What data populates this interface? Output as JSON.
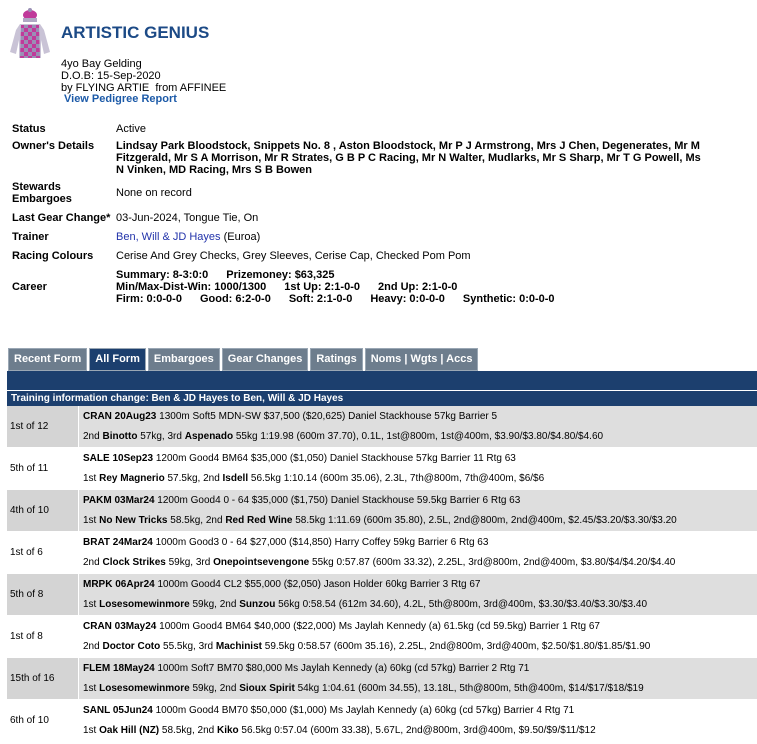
{
  "header": {
    "name": "ARTISTIC GENIUS",
    "description": "4yo Bay Gelding",
    "dob": "D.O.B: 15-Sep-2020",
    "breeding": "by FLYING ARTIE  from AFFINEE",
    "pedigree_link": "View Pedigree Report"
  },
  "details": {
    "status": {
      "label": "Status",
      "value": "Active"
    },
    "owners": {
      "label": "Owner's Details",
      "value": "Lindsay Park Bloodstock, Snippets No. 8 , Aston Bloodstock, Mr P J Armstrong, Mrs J Chen, Degenerates, Mr M Fitzgerald, Mr S A Morrison, Mr R Strates, G B P C Racing, Mr N Walter, Mudlarks, Mr S Sharp, Mr T G Powell, Ms N Vinken, MD Racing, Mrs S B Bowen"
    },
    "embargoes": {
      "label": "Stewards Embargoes",
      "value": "None on record"
    },
    "gear": {
      "label": "Last Gear Change*",
      "value": "03-Jun-2024, Tongue Tie, On"
    },
    "trainer": {
      "label": "Trainer",
      "value": "Ben, Will & JD Hayes",
      "location": "(Euroa)"
    },
    "colours": {
      "label": "Racing Colours",
      "value": "Cerise And Grey Checks, Grey Sleeves, Cerise Cap, Checked Pom Pom"
    },
    "career": {
      "label": "Career",
      "lines": [
        [
          [
            "Summary:",
            "8-3:0:0"
          ],
          [
            "Prizemoney:",
            "$63,325"
          ]
        ],
        [
          [
            "Min/Max-Dist-Win:",
            "1000/1300"
          ],
          [
            "1st Up:",
            "2:1-0-0"
          ],
          [
            "2nd Up:",
            "2:1-0-0"
          ]
        ],
        [
          [
            "Firm:",
            "0:0-0-0"
          ],
          [
            "Good:",
            "6:2-0-0"
          ],
          [
            "Soft:",
            "2:1-0-0"
          ],
          [
            "Heavy:",
            "0:0-0-0"
          ],
          [
            "Synthetic:",
            "0:0-0-0"
          ]
        ]
      ]
    }
  },
  "tabs": {
    "items": [
      "Recent Form",
      "All Form",
      "Embargoes",
      "Gear Changes",
      "Ratings",
      "Noms | Wgts | Accs"
    ],
    "active": 1
  },
  "form": {
    "notice": "Training information change: Ben & JD Hayes to Ben, Will & JD Hayes",
    "rows": [
      {
        "place": "1st of 12",
        "meeting": "CRAN 20Aug23",
        "details": "1300m Soft5 MDN-SW $37,500 ($20,625) Daniel Stackhouse 57kg Barrier 5",
        "result": [
          "2nd",
          "Binotto",
          "57kg, 3rd",
          "Aspenado",
          "55kg 1:19.98 (600m 37.70), 0.1L, 1st@800m, 1st@400m, $3.90/$3.80/$4.80/$4.60"
        ]
      },
      {
        "place": "5th of 11",
        "meeting": "SALE 10Sep23",
        "details": "1200m Good4 BM64 $35,000 ($1,050) Daniel Stackhouse 57kg Barrier 11 Rtg 63",
        "result": [
          "1st",
          "Rey Magnerio",
          "57.5kg, 2nd",
          "Isdell",
          "56.5kg 1:10.14 (600m 35.06), 2.3L, 7th@800m, 7th@400m, $6/$6"
        ]
      },
      {
        "place": "4th of 10",
        "meeting": "PAKM 03Mar24",
        "details": "1200m Good4 0 - 64 $35,000 ($1,750) Daniel Stackhouse 59.5kg Barrier 6 Rtg 63",
        "result": [
          "1st",
          "No New Tricks",
          "58.5kg, 2nd",
          "Red Red Wine",
          "58.5kg 1:11.69 (600m 35.80), 2.5L, 2nd@800m, 2nd@400m, $2.45/$3.20/$3.30/$3.20"
        ]
      },
      {
        "place": "1st of 6",
        "meeting": "BRAT 24Mar24",
        "details": "1000m Good3 0 - 64 $27,000 ($14,850) Harry Coffey 59kg Barrier 6 Rtg 63",
        "result": [
          "2nd",
          "Clock Strikes",
          "59kg, 3rd",
          "Onepointsevengone",
          "55kg 0:57.87 (600m 33.32), 2.25L, 3rd@800m, 2nd@400m, $3.80/$4/$4.20/$4.40"
        ]
      },
      {
        "place": "5th of 8",
        "meeting": "MRPK 06Apr24",
        "details": "1000m Good4 CL2 $55,000 ($2,050) Jason Holder 60kg Barrier 3 Rtg 67",
        "result": [
          "1st",
          "Losesomewinmore",
          "59kg, 2nd",
          "Sunzou",
          "56kg 0:58.54 (612m 34.60), 4.2L, 5th@800m, 3rd@400m, $3.30/$3.40/$3.30/$3.40"
        ]
      },
      {
        "place": "1st of 8",
        "meeting": "CRAN 03May24",
        "details": "1000m Good4 BM64 $40,000 ($22,000) Ms Jaylah Kennedy (a) 61.5kg (cd 59.5kg) Barrier 1 Rtg 67",
        "result": [
          "2nd",
          "Doctor Coto",
          "55.5kg, 3rd",
          "Machinist",
          "59.5kg 0:58.57 (600m 35.16), 2.25L, 2nd@800m, 3rd@400m, $2.50/$1.80/$1.85/$1.90"
        ]
      },
      {
        "place": "15th of 16",
        "meeting": "FLEM 18May24",
        "details": "1000m Soft7 BM70 $80,000 Ms Jaylah Kennedy (a) 60kg (cd 57kg) Barrier 2 Rtg 71",
        "result": [
          "1st",
          "Losesomewinmore",
          "59kg, 2nd",
          "Sioux Spirit",
          "54kg 1:04.61 (600m 34.55), 13.18L, 5th@800m, 5th@400m, $14/$17/$18/$19"
        ]
      },
      {
        "place": "6th of 10",
        "meeting": "SANL 05Jun24",
        "details": "1000m Good4 BM70 $50,000 ($1,000) Ms Jaylah Kennedy (a) 60kg (cd 57kg) Barrier 4 Rtg 71",
        "result": [
          "1st",
          "Oak Hill (NZ)",
          "58.5kg, 2nd",
          "Kiko",
          "56.5kg 0:57.04 (600m 33.38), 5.67L, 2nd@800m, 3rd@400m, $9.50/$9/$11/$12"
        ]
      }
    ]
  }
}
